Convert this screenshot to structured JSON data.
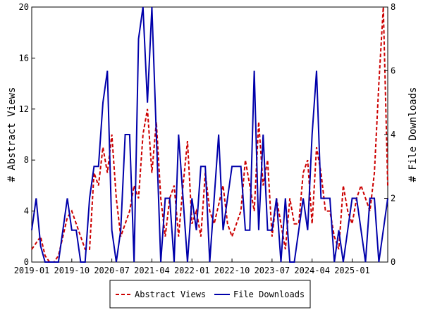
{
  "chart_data": {
    "type": "line",
    "xlabel": "",
    "ylabel_left": "# Abstract Views",
    "ylabel_right": "# File Downloads",
    "ylim_left": [
      0,
      20
    ],
    "ylim_right": [
      0,
      8
    ],
    "yticks_left": [
      "0",
      "4",
      "8",
      "12",
      "16",
      "20"
    ],
    "yticks_right": [
      "0",
      "2",
      "4",
      "6",
      "8"
    ],
    "x_range": [
      "2019-01",
      "2025-09"
    ],
    "xticks": [
      "2019-01",
      "2019-10",
      "2020-07",
      "2021-04",
      "2022-01",
      "2022-10",
      "2023-07",
      "2024-04",
      "2025-01"
    ],
    "grid": false,
    "legend_position": "bottom-center",
    "series": [
      {
        "name": "Abstract Views",
        "axis": "left",
        "color": "#cc0000",
        "style": "dashed",
        "points": [
          [
            "2019-01",
            1
          ],
          [
            "2019-02",
            1.5
          ],
          [
            "2019-03",
            2
          ],
          [
            "2019-04",
            0.5
          ],
          [
            "2019-05",
            0
          ],
          [
            "2019-06",
            0
          ],
          [
            "2019-07",
            0.5
          ],
          [
            "2019-08",
            2
          ],
          [
            "2019-09",
            3.5
          ],
          [
            "2019-10",
            4
          ],
          [
            "2019-11",
            3
          ],
          [
            "2019-12",
            2
          ],
          [
            "2020-01",
            1
          ],
          [
            "2020-02",
            1
          ],
          [
            "2020-03",
            7
          ],
          [
            "2020-04",
            6
          ],
          [
            "2020-05",
            9
          ],
          [
            "2020-06",
            7
          ],
          [
            "2020-07",
            10
          ],
          [
            "2020-08",
            5
          ],
          [
            "2020-09",
            2
          ],
          [
            "2020-10",
            3
          ],
          [
            "2020-11",
            4
          ],
          [
            "2020-12",
            6
          ],
          [
            "2021-01",
            5
          ],
          [
            "2021-02",
            10
          ],
          [
            "2021-03",
            12
          ],
          [
            "2021-04",
            7
          ],
          [
            "2021-05",
            11
          ],
          [
            "2021-06",
            5
          ],
          [
            "2021-07",
            2
          ],
          [
            "2021-08",
            5
          ],
          [
            "2021-09",
            6
          ],
          [
            "2021-10",
            2
          ],
          [
            "2021-11",
            6
          ],
          [
            "2021-12",
            9.5
          ],
          [
            "2022-01",
            3
          ],
          [
            "2022-02",
            4
          ],
          [
            "2022-03",
            2
          ],
          [
            "2022-04",
            7
          ],
          [
            "2022-05",
            4
          ],
          [
            "2022-06",
            3
          ],
          [
            "2022-07",
            4.5
          ],
          [
            "2022-08",
            6
          ],
          [
            "2022-09",
            3
          ],
          [
            "2022-10",
            2
          ],
          [
            "2022-11",
            3
          ],
          [
            "2022-12",
            4
          ],
          [
            "2023-01",
            8
          ],
          [
            "2023-02",
            6
          ],
          [
            "2023-03",
            4
          ],
          [
            "2023-04",
            11
          ],
          [
            "2023-05",
            6
          ],
          [
            "2023-06",
            8
          ],
          [
            "2023-07",
            2
          ],
          [
            "2023-08",
            5
          ],
          [
            "2023-09",
            3
          ],
          [
            "2023-10",
            1
          ],
          [
            "2023-11",
            5
          ],
          [
            "2023-12",
            3
          ],
          [
            "2024-01",
            3
          ],
          [
            "2024-02",
            7
          ],
          [
            "2024-03",
            8
          ],
          [
            "2024-04",
            3
          ],
          [
            "2024-05",
            9
          ],
          [
            "2024-06",
            7
          ],
          [
            "2024-07",
            4
          ],
          [
            "2024-08",
            4
          ],
          [
            "2024-09",
            2
          ],
          [
            "2024-10",
            1
          ],
          [
            "2024-11",
            6
          ],
          [
            "2024-12",
            4
          ],
          [
            "2025-01",
            3
          ],
          [
            "2025-02",
            5
          ],
          [
            "2025-03",
            6
          ],
          [
            "2025-04",
            5
          ],
          [
            "2025-05",
            4
          ],
          [
            "2025-06",
            7
          ],
          [
            "2025-07",
            14
          ],
          [
            "2025-08",
            20
          ],
          [
            "2025-09",
            6
          ]
        ]
      },
      {
        "name": "File Downloads",
        "axis": "right",
        "color": "#0000aa",
        "style": "solid",
        "points": [
          [
            "2019-01",
            1
          ],
          [
            "2019-02",
            2
          ],
          [
            "2019-03",
            0.5
          ],
          [
            "2019-04",
            0
          ],
          [
            "2019-05",
            0
          ],
          [
            "2019-06",
            0
          ],
          [
            "2019-07",
            0
          ],
          [
            "2019-08",
            1
          ],
          [
            "2019-09",
            2
          ],
          [
            "2019-10",
            1
          ],
          [
            "2019-11",
            1
          ],
          [
            "2019-12",
            0
          ],
          [
            "2020-01",
            0
          ],
          [
            "2020-02",
            2
          ],
          [
            "2020-03",
            3
          ],
          [
            "2020-04",
            3
          ],
          [
            "2020-05",
            5
          ],
          [
            "2020-06",
            6
          ],
          [
            "2020-07",
            1
          ],
          [
            "2020-08",
            0
          ],
          [
            "2020-09",
            1
          ],
          [
            "2020-10",
            4
          ],
          [
            "2020-11",
            4
          ],
          [
            "2020-12",
            0
          ],
          [
            "2021-01",
            7
          ],
          [
            "2021-02",
            8
          ],
          [
            "2021-03",
            5
          ],
          [
            "2021-04",
            8
          ],
          [
            "2021-05",
            4
          ],
          [
            "2021-06",
            0
          ],
          [
            "2021-07",
            2
          ],
          [
            "2021-08",
            2
          ],
          [
            "2021-09",
            0
          ],
          [
            "2021-10",
            4
          ],
          [
            "2021-11",
            2
          ],
          [
            "2021-12",
            0
          ],
          [
            "2022-01",
            2
          ],
          [
            "2022-02",
            1
          ],
          [
            "2022-03",
            3
          ],
          [
            "2022-04",
            3
          ],
          [
            "2022-05",
            0
          ],
          [
            "2022-06",
            2
          ],
          [
            "2022-07",
            4
          ],
          [
            "2022-08",
            1
          ],
          [
            "2022-09",
            2
          ],
          [
            "2022-10",
            3
          ],
          [
            "2022-11",
            3
          ],
          [
            "2022-12",
            3
          ],
          [
            "2023-01",
            1
          ],
          [
            "2023-02",
            1
          ],
          [
            "2023-03",
            6
          ],
          [
            "2023-04",
            1
          ],
          [
            "2023-05",
            4
          ],
          [
            "2023-06",
            1
          ],
          [
            "2023-07",
            1
          ],
          [
            "2023-08",
            2
          ],
          [
            "2023-09",
            0
          ],
          [
            "2023-10",
            2
          ],
          [
            "2023-11",
            0
          ],
          [
            "2023-12",
            0
          ],
          [
            "2024-01",
            1
          ],
          [
            "2024-02",
            2
          ],
          [
            "2024-03",
            1
          ],
          [
            "2024-04",
            4
          ],
          [
            "2024-05",
            6
          ],
          [
            "2024-06",
            2
          ],
          [
            "2024-07",
            2
          ],
          [
            "2024-08",
            2
          ],
          [
            "2024-09",
            0
          ],
          [
            "2024-10",
            1
          ],
          [
            "2024-11",
            0
          ],
          [
            "2024-12",
            1
          ],
          [
            "2025-01",
            2
          ],
          [
            "2025-02",
            2
          ],
          [
            "2025-03",
            1
          ],
          [
            "2025-04",
            0
          ],
          [
            "2025-05",
            2
          ],
          [
            "2025-06",
            2
          ],
          [
            "2025-07",
            0
          ],
          [
            "2025-08",
            1
          ],
          [
            "2025-09",
            2
          ]
        ]
      }
    ]
  }
}
